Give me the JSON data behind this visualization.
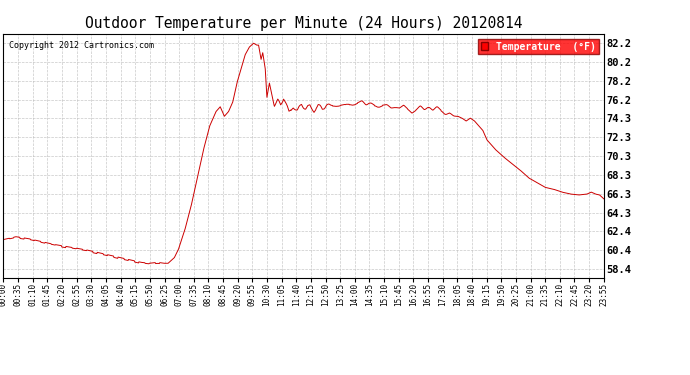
{
  "title": "Outdoor Temperature per Minute (24 Hours) 20120814",
  "copyright_text": "Copyright 2012 Cartronics.com",
  "legend_label": "Temperature  (°F)",
  "line_color": "#cc0000",
  "background_color": "#ffffff",
  "plot_bg_color": "#ffffff",
  "grid_color": "#bbbbbb",
  "yticks": [
    58.4,
    60.4,
    62.4,
    64.3,
    66.3,
    68.3,
    70.3,
    72.3,
    74.3,
    76.2,
    78.2,
    80.2,
    82.2
  ],
  "ymin": 57.5,
  "ymax": 83.2,
  "xtick_labels": [
    "00:00",
    "00:35",
    "01:10",
    "01:45",
    "02:20",
    "02:55",
    "03:30",
    "04:05",
    "04:40",
    "05:15",
    "05:50",
    "06:25",
    "07:00",
    "07:35",
    "08:10",
    "08:45",
    "09:20",
    "09:55",
    "10:30",
    "11:05",
    "11:40",
    "12:15",
    "12:50",
    "13:25",
    "14:00",
    "14:35",
    "15:10",
    "15:45",
    "16:20",
    "16:55",
    "17:30",
    "18:05",
    "18:40",
    "19:15",
    "19:50",
    "20:25",
    "21:00",
    "21:35",
    "22:10",
    "22:45",
    "23:20",
    "23:55"
  ],
  "key_points": [
    [
      0,
      61.5
    ],
    [
      30,
      61.8
    ],
    [
      60,
      61.6
    ],
    [
      90,
      61.3
    ],
    [
      120,
      61.0
    ],
    [
      160,
      60.7
    ],
    [
      200,
      60.4
    ],
    [
      240,
      60.0
    ],
    [
      280,
      59.6
    ],
    [
      310,
      59.3
    ],
    [
      330,
      59.1
    ],
    [
      350,
      59.0
    ],
    [
      370,
      59.1
    ],
    [
      385,
      59.0
    ],
    [
      395,
      59.0
    ],
    [
      400,
      59.2
    ],
    [
      410,
      59.6
    ],
    [
      420,
      60.5
    ],
    [
      435,
      62.5
    ],
    [
      450,
      65.0
    ],
    [
      465,
      68.0
    ],
    [
      480,
      71.0
    ],
    [
      495,
      73.5
    ],
    [
      510,
      75.0
    ],
    [
      520,
      75.5
    ],
    [
      530,
      74.5
    ],
    [
      540,
      75.0
    ],
    [
      550,
      76.0
    ],
    [
      560,
      78.0
    ],
    [
      570,
      79.5
    ],
    [
      580,
      81.0
    ],
    [
      590,
      81.8
    ],
    [
      600,
      82.2
    ],
    [
      608,
      82.0
    ],
    [
      612,
      82.0
    ],
    [
      618,
      80.5
    ],
    [
      622,
      81.2
    ],
    [
      628,
      79.5
    ],
    [
      632,
      76.5
    ],
    [
      638,
      78.0
    ],
    [
      645,
      76.5
    ],
    [
      650,
      75.5
    ],
    [
      658,
      76.0
    ],
    [
      665,
      75.5
    ],
    [
      672,
      76.2
    ],
    [
      678,
      75.5
    ],
    [
      685,
      74.8
    ],
    [
      695,
      75.5
    ],
    [
      705,
      75.3
    ],
    [
      715,
      76.0
    ],
    [
      725,
      75.5
    ],
    [
      735,
      75.8
    ],
    [
      745,
      75.0
    ],
    [
      755,
      75.5
    ],
    [
      765,
      75.0
    ],
    [
      775,
      75.5
    ],
    [
      785,
      75.5
    ],
    [
      800,
      75.8
    ],
    [
      820,
      75.5
    ],
    [
      840,
      76.0
    ],
    [
      860,
      75.8
    ],
    [
      880,
      75.5
    ],
    [
      900,
      75.8
    ],
    [
      920,
      75.5
    ],
    [
      940,
      75.2
    ],
    [
      960,
      75.5
    ],
    [
      980,
      75.0
    ],
    [
      1000,
      75.3
    ],
    [
      1020,
      75.0
    ],
    [
      1040,
      75.2
    ],
    [
      1060,
      75.0
    ],
    [
      1075,
      74.8
    ],
    [
      1090,
      74.5
    ],
    [
      1100,
      74.3
    ],
    [
      1110,
      74.0
    ],
    [
      1120,
      74.3
    ],
    [
      1130,
      74.0
    ],
    [
      1140,
      73.5
    ],
    [
      1150,
      73.0
    ],
    [
      1160,
      72.0
    ],
    [
      1170,
      71.5
    ],
    [
      1180,
      71.0
    ],
    [
      1200,
      70.2
    ],
    [
      1220,
      69.5
    ],
    [
      1240,
      68.8
    ],
    [
      1260,
      68.0
    ],
    [
      1280,
      67.5
    ],
    [
      1300,
      67.0
    ],
    [
      1320,
      66.8
    ],
    [
      1340,
      66.5
    ],
    [
      1360,
      66.3
    ],
    [
      1380,
      66.2
    ],
    [
      1400,
      66.3
    ],
    [
      1410,
      66.5
    ],
    [
      1420,
      66.3
    ],
    [
      1430,
      66.2
    ],
    [
      1440,
      65.8
    ]
  ]
}
